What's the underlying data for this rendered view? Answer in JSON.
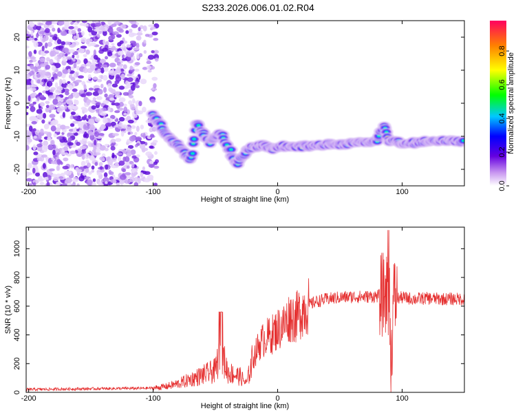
{
  "title": "S233.2026.006.01.02.R04",
  "chart_data": [
    {
      "type": "heatmap",
      "xlabel": "Height of straight line (km)",
      "ylabel": "Frequency (Hz)",
      "xlim": [
        -202,
        150
      ],
      "ylim": [
        -25,
        25
      ],
      "x_ticks": [
        -200,
        -100,
        0,
        100
      ],
      "y_ticks": [
        -20,
        -10,
        0,
        10,
        20
      ],
      "x_tick_labels": [
        "-200",
        "-100",
        "0",
        "100"
      ],
      "y_tick_labels": [
        "-20",
        "-10",
        "0",
        "10",
        "20"
      ],
      "colorbar": {
        "label": "Normalized spectral amplitude",
        "range": [
          0,
          0.98
        ],
        "ticks": [
          "0.0",
          "0.2",
          "0.4",
          "0.6",
          "0.8"
        ],
        "tick_values": [
          0,
          0.2,
          0.4,
          0.6,
          0.8
        ]
      },
      "trace": [
        {
          "x": -100,
          "y": -3.5
        },
        {
          "x": -95,
          "y": -6
        },
        {
          "x": -90,
          "y": -9
        },
        {
          "x": -85,
          "y": -11
        },
        {
          "x": -80,
          "y": -13
        },
        {
          "x": -75,
          "y": -15
        },
        {
          "x": -70,
          "y": -17
        },
        {
          "x": -65,
          "y": -6
        },
        {
          "x": -60,
          "y": -9
        },
        {
          "x": -55,
          "y": -12
        },
        {
          "x": -50,
          "y": -10
        },
        {
          "x": -45,
          "y": -9
        },
        {
          "x": -40,
          "y": -13
        },
        {
          "x": -35,
          "y": -17
        },
        {
          "x": -32,
          "y": -18
        },
        {
          "x": -28,
          "y": -16
        },
        {
          "x": -24,
          "y": -14
        },
        {
          "x": -20,
          "y": -13.5
        },
        {
          "x": -15,
          "y": -13
        },
        {
          "x": -10,
          "y": -12.5
        },
        {
          "x": -5,
          "y": -14
        },
        {
          "x": 0,
          "y": -13
        },
        {
          "x": 10,
          "y": -13
        },
        {
          "x": 20,
          "y": -13
        },
        {
          "x": 30,
          "y": -12.8
        },
        {
          "x": 40,
          "y": -12.5
        },
        {
          "x": 50,
          "y": -12.5
        },
        {
          "x": 60,
          "y": -12
        },
        {
          "x": 70,
          "y": -11.8
        },
        {
          "x": 80,
          "y": -11.5
        },
        {
          "x": 85,
          "y": -7
        },
        {
          "x": 90,
          "y": -11.5
        },
        {
          "x": 100,
          "y": -12
        },
        {
          "x": 110,
          "y": -12
        },
        {
          "x": 120,
          "y": -11.5
        },
        {
          "x": 130,
          "y": -11.5
        },
        {
          "x": 140,
          "y": -11.5
        },
        {
          "x": 150,
          "y": -11.5
        }
      ]
    },
    {
      "type": "line",
      "xlabel": "Height of straight line (km)",
      "ylabel": "SNR (10 * v/v)",
      "xlim": [
        -202,
        150
      ],
      "ylim": [
        0,
        1150
      ],
      "x_ticks": [
        -200,
        -100,
        0,
        100
      ],
      "y_ticks": [
        0,
        200,
        400,
        600,
        800,
        1000
      ],
      "x_tick_labels": [
        "-200",
        "-100",
        "0",
        "100"
      ],
      "y_tick_labels": [
        "0",
        "200",
        "400",
        "600",
        "800",
        "1000"
      ],
      "color": "#e53030",
      "envelope": [
        {
          "x": -202,
          "y": 20
        },
        {
          "x": -150,
          "y": 25
        },
        {
          "x": -110,
          "y": 28
        },
        {
          "x": -100,
          "y": 30
        },
        {
          "x": -90,
          "y": 40
        },
        {
          "x": -80,
          "y": 60
        },
        {
          "x": -70,
          "y": 90
        },
        {
          "x": -60,
          "y": 120
        },
        {
          "x": -50,
          "y": 150
        },
        {
          "x": -46,
          "y": 300
        },
        {
          "x": -40,
          "y": 140
        },
        {
          "x": -30,
          "y": 110
        },
        {
          "x": -25,
          "y": 60
        },
        {
          "x": -20,
          "y": 230
        },
        {
          "x": -15,
          "y": 330
        },
        {
          "x": -10,
          "y": 380
        },
        {
          "x": -5,
          "y": 400
        },
        {
          "x": 0,
          "y": 440
        },
        {
          "x": 5,
          "y": 470
        },
        {
          "x": 10,
          "y": 530
        },
        {
          "x": 15,
          "y": 520
        },
        {
          "x": 20,
          "y": 580
        },
        {
          "x": 30,
          "y": 630
        },
        {
          "x": 40,
          "y": 650
        },
        {
          "x": 50,
          "y": 660
        },
        {
          "x": 60,
          "y": 665
        },
        {
          "x": 70,
          "y": 665
        },
        {
          "x": 80,
          "y": 670
        },
        {
          "x": 85,
          "y": 680
        },
        {
          "x": 90,
          "y": 700
        },
        {
          "x": 91,
          "y": 140
        },
        {
          "x": 93,
          "y": 650
        },
        {
          "x": 100,
          "y": 660
        },
        {
          "x": 110,
          "y": 650
        },
        {
          "x": 120,
          "y": 655
        },
        {
          "x": 130,
          "y": 650
        },
        {
          "x": 140,
          "y": 650
        },
        {
          "x": 150,
          "y": 650
        }
      ]
    }
  ]
}
